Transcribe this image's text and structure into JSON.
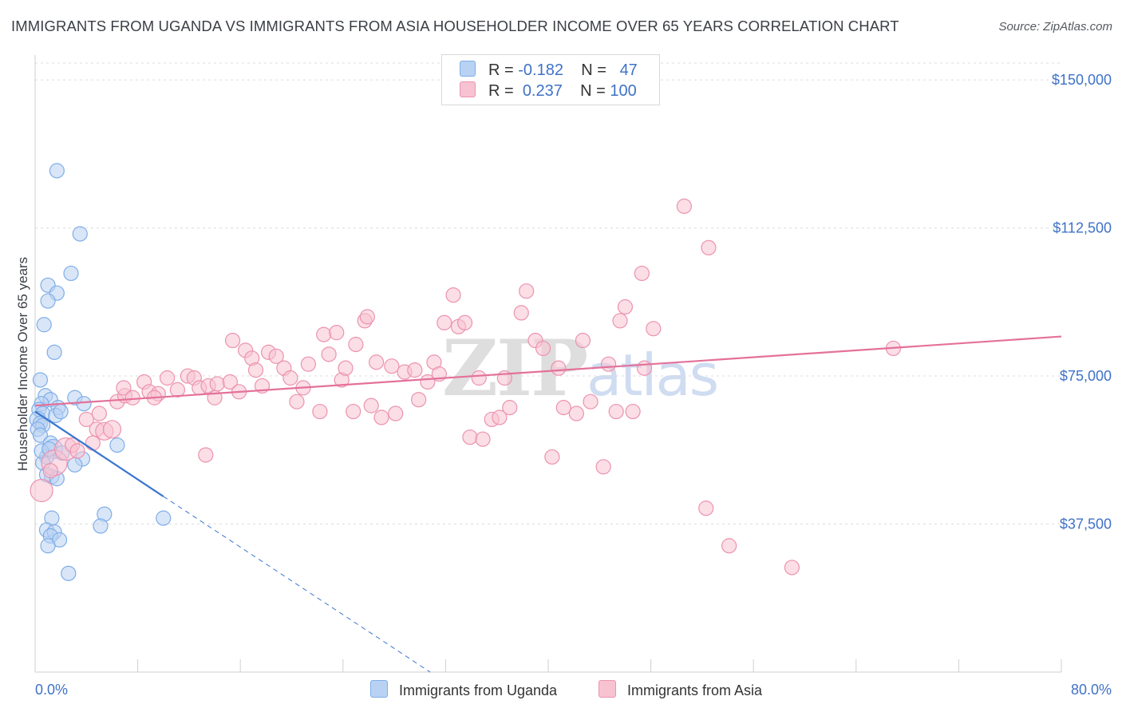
{
  "chart_data": {
    "type": "scatter",
    "title": "IMMIGRANTS FROM UGANDA VS IMMIGRANTS FROM ASIA HOUSEHOLDER INCOME OVER 65 YEARS CORRELATION CHART",
    "source": "Source: ZipAtlas.com",
    "ylabel": "Householder Income Over 65 years",
    "xlabel": "",
    "xlim": [
      0,
      80
    ],
    "ylim": [
      0,
      157500
    ],
    "x_tick_labels": {
      "min": "0.0%",
      "max": "80.0%"
    },
    "y_ticks": [
      {
        "value": 150000,
        "label": "$150,000"
      },
      {
        "value": 112500,
        "label": "$112,500"
      },
      {
        "value": 75000,
        "label": "$75,000"
      },
      {
        "value": 37500,
        "label": "$37,500"
      }
    ],
    "legend": [
      {
        "name": "Immigrants from Uganda",
        "r_label": "R =",
        "r": "-0.182",
        "n_label": "N =",
        "n": "47",
        "color": "#7eaee8",
        "fill": "#b9d2f3",
        "line": "#3a76d0"
      },
      {
        "name": "Immigrants from Asia",
        "r_label": "R =",
        "r": "0.237",
        "n_label": "N =",
        "n": "100",
        "color": "#ec93ae",
        "fill": "#f7c3d2",
        "line": "#e4719a"
      }
    ],
    "series": [
      {
        "name": "Immigrants from Uganda",
        "trend": {
          "x0": 0,
          "y0": 66000,
          "x1": 10,
          "y1": 44500,
          "dash_to_x": 35,
          "dash_to_y": -9000
        },
        "points": [
          [
            1.7,
            127000,
            9
          ],
          [
            3.5,
            111000,
            9
          ],
          [
            2.8,
            101000,
            9
          ],
          [
            1.0,
            98000,
            9
          ],
          [
            1.7,
            96000,
            9
          ],
          [
            1.0,
            94000,
            9
          ],
          [
            0.7,
            88000,
            9
          ],
          [
            1.5,
            81000,
            9
          ],
          [
            0.4,
            74000,
            9
          ],
          [
            0.8,
            70000,
            9
          ],
          [
            1.2,
            69000,
            9
          ],
          [
            3.1,
            69500,
            9
          ],
          [
            0.5,
            68000,
            9
          ],
          [
            3.8,
            68000,
            9
          ],
          [
            1.8,
            67000,
            9
          ],
          [
            0.3,
            66500,
            9
          ],
          [
            0.6,
            65500,
            9
          ],
          [
            1.6,
            65000,
            9
          ],
          [
            0.2,
            64000,
            10
          ],
          [
            0.4,
            63000,
            9
          ],
          [
            0.6,
            62500,
            9
          ],
          [
            0.2,
            61500,
            9
          ],
          [
            0.4,
            60000,
            9
          ],
          [
            1.2,
            58000,
            9
          ],
          [
            6.4,
            57500,
            9
          ],
          [
            1.4,
            56500,
            12
          ],
          [
            2.1,
            55500,
            9
          ],
          [
            0.9,
            54500,
            9
          ],
          [
            0.6,
            53000,
            9
          ],
          [
            3.7,
            54000,
            9
          ],
          [
            3.1,
            52500,
            9
          ],
          [
            1.3,
            49500,
            9
          ],
          [
            0.9,
            50000,
            9
          ],
          [
            1.7,
            49000,
            9
          ],
          [
            5.4,
            40000,
            9
          ],
          [
            1.3,
            39000,
            9
          ],
          [
            10.0,
            39000,
            9
          ],
          [
            5.1,
            37000,
            9
          ],
          [
            0.9,
            36000,
            9
          ],
          [
            1.5,
            35500,
            9
          ],
          [
            1.2,
            34500,
            9
          ],
          [
            1.9,
            33500,
            9
          ],
          [
            1.0,
            32000,
            9
          ],
          [
            2.6,
            25000,
            9
          ],
          [
            0.5,
            56000,
            9
          ],
          [
            1.1,
            56500,
            9
          ],
          [
            2.0,
            66000,
            9
          ]
        ]
      },
      {
        "name": "Immigrants from Asia",
        "trend": {
          "x0": 0,
          "y0": 67500,
          "x1": 80,
          "y1": 85000
        },
        "points": [
          [
            0.5,
            46000,
            14
          ],
          [
            1.5,
            53000,
            16
          ],
          [
            2.4,
            56500,
            14
          ],
          [
            4.5,
            58000,
            9
          ],
          [
            4.8,
            61500,
            9
          ],
          [
            5.4,
            61000,
            11
          ],
          [
            6.0,
            61500,
            11
          ],
          [
            4.0,
            64000,
            9
          ],
          [
            5.0,
            65500,
            9
          ],
          [
            6.4,
            68500,
            9
          ],
          [
            7.0,
            70000,
            9
          ],
          [
            6.9,
            72000,
            9
          ],
          [
            7.6,
            69500,
            9
          ],
          [
            8.5,
            73500,
            9
          ],
          [
            8.9,
            71000,
            9
          ],
          [
            9.6,
            70500,
            9
          ],
          [
            10.3,
            74500,
            9
          ],
          [
            11.1,
            71500,
            9
          ],
          [
            11.9,
            75000,
            9
          ],
          [
            12.4,
            74500,
            9
          ],
          [
            12.8,
            72000,
            9
          ],
          [
            13.5,
            72500,
            9
          ],
          [
            14.2,
            73000,
            9
          ],
          [
            14.0,
            69500,
            9
          ],
          [
            15.2,
            73500,
            9
          ],
          [
            15.9,
            71000,
            9
          ],
          [
            15.4,
            84000,
            9
          ],
          [
            16.4,
            81500,
            9
          ],
          [
            16.9,
            79500,
            9
          ],
          [
            17.2,
            76500,
            9
          ],
          [
            17.7,
            72500,
            9
          ],
          [
            18.2,
            81000,
            9
          ],
          [
            18.8,
            80000,
            9
          ],
          [
            19.4,
            77000,
            9
          ],
          [
            19.9,
            74500,
            9
          ],
          [
            20.4,
            68500,
            9
          ],
          [
            20.9,
            72000,
            9
          ],
          [
            21.3,
            78000,
            9
          ],
          [
            22.2,
            66000,
            9
          ],
          [
            22.5,
            85500,
            9
          ],
          [
            22.9,
            80500,
            9
          ],
          [
            23.5,
            86000,
            9
          ],
          [
            23.9,
            74000,
            9
          ],
          [
            24.2,
            77000,
            9
          ],
          [
            25.0,
            83000,
            9
          ],
          [
            25.7,
            89000,
            9
          ],
          [
            25.9,
            90000,
            9
          ],
          [
            26.2,
            67500,
            9
          ],
          [
            27.0,
            64500,
            9
          ],
          [
            26.6,
            78500,
            9
          ],
          [
            27.8,
            77500,
            9
          ],
          [
            28.1,
            65500,
            9
          ],
          [
            28.8,
            76000,
            9
          ],
          [
            29.6,
            76500,
            9
          ],
          [
            29.9,
            69000,
            9
          ],
          [
            30.6,
            73500,
            9
          ],
          [
            31.1,
            78500,
            9
          ],
          [
            31.5,
            75500,
            9
          ],
          [
            31.9,
            88500,
            9
          ],
          [
            32.6,
            95500,
            9
          ],
          [
            33.0,
            87500,
            9
          ],
          [
            33.5,
            88500,
            9
          ],
          [
            33.9,
            59500,
            9
          ],
          [
            34.6,
            74500,
            9
          ],
          [
            34.9,
            59000,
            9
          ],
          [
            35.6,
            64000,
            9
          ],
          [
            36.2,
            64500,
            9
          ],
          [
            36.6,
            74500,
            9
          ],
          [
            37.0,
            67000,
            9
          ],
          [
            37.9,
            91000,
            9
          ],
          [
            38.3,
            96500,
            9
          ],
          [
            39.0,
            84000,
            9
          ],
          [
            39.6,
            82000,
            9
          ],
          [
            40.3,
            54500,
            9
          ],
          [
            40.8,
            77000,
            9
          ],
          [
            41.2,
            67000,
            9
          ],
          [
            42.2,
            65500,
            9
          ],
          [
            42.7,
            84000,
            9
          ],
          [
            43.3,
            68500,
            9
          ],
          [
            44.3,
            52000,
            9
          ],
          [
            44.7,
            78000,
            9
          ],
          [
            45.3,
            66000,
            9
          ],
          [
            45.6,
            89000,
            9
          ],
          [
            46.0,
            92500,
            9
          ],
          [
            46.6,
            66000,
            9
          ],
          [
            47.3,
            101000,
            9
          ],
          [
            47.5,
            77000,
            9
          ],
          [
            48.2,
            87000,
            9
          ],
          [
            50.6,
            118000,
            9
          ],
          [
            52.5,
            107500,
            9
          ],
          [
            52.3,
            41500,
            9
          ],
          [
            54.1,
            32000,
            9
          ],
          [
            59.0,
            26500,
            9
          ],
          [
            66.9,
            82000,
            9
          ],
          [
            2.9,
            57500,
            9
          ],
          [
            1.2,
            51000,
            9
          ],
          [
            3.3,
            56000,
            9
          ],
          [
            9.3,
            69500,
            9
          ],
          [
            13.3,
            55000,
            9
          ],
          [
            24.8,
            66000,
            9
          ]
        ]
      }
    ]
  }
}
